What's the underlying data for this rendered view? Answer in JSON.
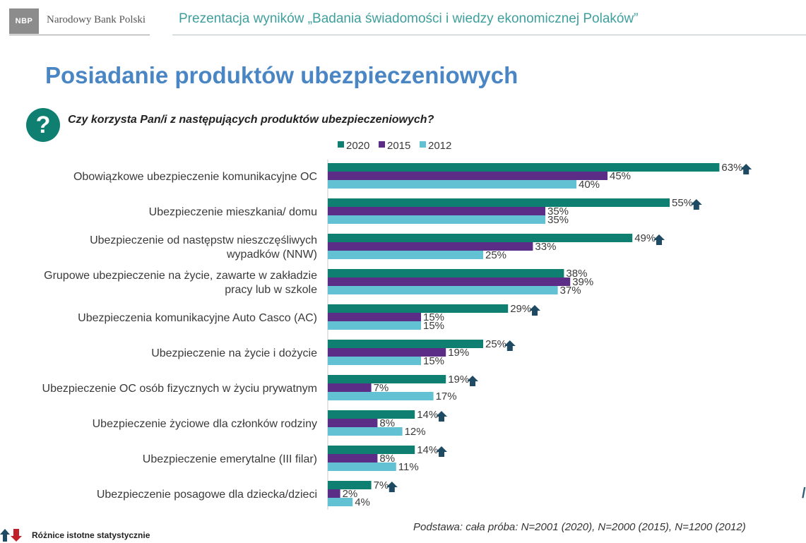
{
  "header": {
    "logo_text": "NBP",
    "bank_name": "Narodowy Bank Polski",
    "presentation_title": "Prezentacja wyników „Badania świadomości i wiedzy ekonomicznej Polaków”"
  },
  "page_title": "Posiadanie produktów ubezpieczeniowych",
  "question": {
    "icon": "question-mark-icon",
    "text": "Czy korzysta Pan/i z następujących produktów ubezpieczeniowych?"
  },
  "chart_data": {
    "type": "bar",
    "orientation": "horizontal",
    "xlim": [
      0,
      100
    ],
    "value_suffix": "%",
    "categories": [
      [
        "Obowiązkowe ubezpieczenie komunikacyjne OC"
      ],
      [
        "Ubezpieczenie mieszkania/ domu"
      ],
      [
        "Ubezpieczenie od następstw nieszczęśliwych",
        "wypadków (NNW)"
      ],
      [
        "Grupowe ubezpieczenie na życie, zawarte w zakładzie",
        "pracy lub w szkole"
      ],
      [
        "Ubezpieczenia komunikacyjne Auto Casco (AC)"
      ],
      [
        "Ubezpieczenie na życie i dożycie"
      ],
      [
        "Ubezpieczenie OC osób fizycznych w życiu prywatnym"
      ],
      [
        "Ubezpieczenie życiowe dla członków rodziny"
      ],
      [
        "Ubezpieczenie emerytalne (III filar)"
      ],
      [
        "Ubezpieczenie posagowe dla dziecka/dzieci"
      ]
    ],
    "series": [
      {
        "name": "2020",
        "color": "#0f7f72",
        "values": [
          63,
          55,
          49,
          38,
          29,
          25,
          19,
          14,
          14,
          7
        ]
      },
      {
        "name": "2015",
        "color": "#5c2d86",
        "values": [
          45,
          35,
          33,
          39,
          15,
          19,
          7,
          8,
          8,
          2
        ]
      },
      {
        "name": "2012",
        "color": "#62c2d4",
        "values": [
          40,
          35,
          25,
          37,
          15,
          15,
          17,
          12,
          11,
          4
        ]
      }
    ],
    "significant_increase_2020": [
      true,
      true,
      true,
      false,
      true,
      true,
      true,
      true,
      true,
      true
    ],
    "legend_position": "top"
  },
  "footer": {
    "base_note": "Podstawa: cała próba: N=2001 (2020), N=2000 (2015), N=1200 (2012)",
    "significance_legend": "Różnice istotne statystycznie",
    "arrow_up_color": "#1e4a63",
    "arrow_down_color": "#c0202a"
  }
}
